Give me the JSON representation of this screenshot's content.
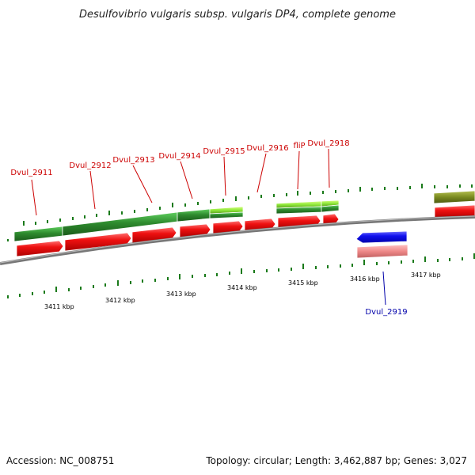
{
  "title": "Desulfovibrio vulgaris subsp. vulgaris DP4, complete genome",
  "footer": {
    "accession": "Accession: NC_008751",
    "summary": "Topology: circular; Length: 3,462,887 bp; Genes: 3,027"
  },
  "colors": {
    "backbone": "#777777",
    "tick": "#1a7a1a",
    "gene_dark_green": "#2e8b2e",
    "gene_light_green": "#8fe83a",
    "gene_olive": "#7a8a20",
    "cds_red": "#ee1111",
    "cds_blue": "#1111ee",
    "cds_pink": "#ee8888",
    "label_red": "#cc0000",
    "label_blue": "#0000aa"
  },
  "scale_labels": [
    "3411 kbp",
    "3412 kbp",
    "3413 kbp",
    "3414 kbp",
    "3415 kbp",
    "3416 kbp",
    "3417 kbp"
  ],
  "gene_labels": [
    {
      "name": "Dvul_2911",
      "strand": "forward"
    },
    {
      "name": "Dvul_2912",
      "strand": "forward"
    },
    {
      "name": "Dvul_2913",
      "strand": "forward"
    },
    {
      "name": "Dvul_2914",
      "strand": "forward"
    },
    {
      "name": "Dvul_2915",
      "strand": "forward"
    },
    {
      "name": "Dvul_2916",
      "strand": "forward"
    },
    {
      "name": "fliP",
      "strand": "forward"
    },
    {
      "name": "Dvul_2918",
      "strand": "forward"
    },
    {
      "name": "Dvul_2919",
      "strand": "reverse"
    }
  ]
}
